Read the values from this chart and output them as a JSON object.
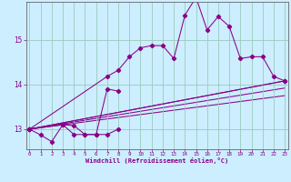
{
  "xlabel": "Windchill (Refroidissement éolien,°C)",
  "background_color": "#cceeff",
  "line_color": "#880088",
  "grid_color": "#99ccbb",
  "spine_color": "#666666",
  "x_ticks": [
    0,
    1,
    2,
    3,
    4,
    5,
    6,
    7,
    8,
    9,
    10,
    11,
    12,
    13,
    14,
    15,
    16,
    17,
    18,
    19,
    20,
    21,
    22,
    23
  ],
  "y_ticks": [
    13,
    14,
    15
  ],
  "ylim": [
    12.55,
    15.85
  ],
  "xlim": [
    -0.3,
    23.3
  ],
  "series": [
    {
      "x": [
        0,
        1,
        2,
        3,
        4,
        5,
        6,
        7,
        8
      ],
      "y": [
        13.0,
        12.87,
        12.72,
        13.1,
        13.08,
        12.88,
        12.88,
        12.88,
        13.0
      ]
    },
    {
      "x": [
        0,
        3,
        4,
        5,
        6,
        7,
        8
      ],
      "y": [
        13.0,
        13.1,
        12.88,
        12.88,
        12.88,
        13.9,
        13.85
      ]
    },
    {
      "x": [
        0,
        7,
        8,
        9,
        10,
        11,
        12,
        13,
        14,
        15,
        16,
        17,
        18,
        19,
        20,
        21,
        22,
        23
      ],
      "y": [
        13.0,
        14.18,
        14.32,
        14.62,
        14.82,
        14.87,
        14.87,
        14.58,
        15.55,
        15.95,
        15.22,
        15.52,
        15.3,
        14.58,
        14.62,
        14.62,
        14.18,
        14.08
      ]
    },
    {
      "x": [
        0,
        23
      ],
      "y": [
        13.0,
        14.08
      ]
    }
  ],
  "straight_lines": [
    {
      "x": [
        0,
        23
      ],
      "y": [
        13.0,
        14.08
      ]
    },
    {
      "x": [
        0,
        23
      ],
      "y": [
        13.0,
        13.92
      ]
    },
    {
      "x": [
        0,
        23
      ],
      "y": [
        13.0,
        13.75
      ]
    }
  ]
}
